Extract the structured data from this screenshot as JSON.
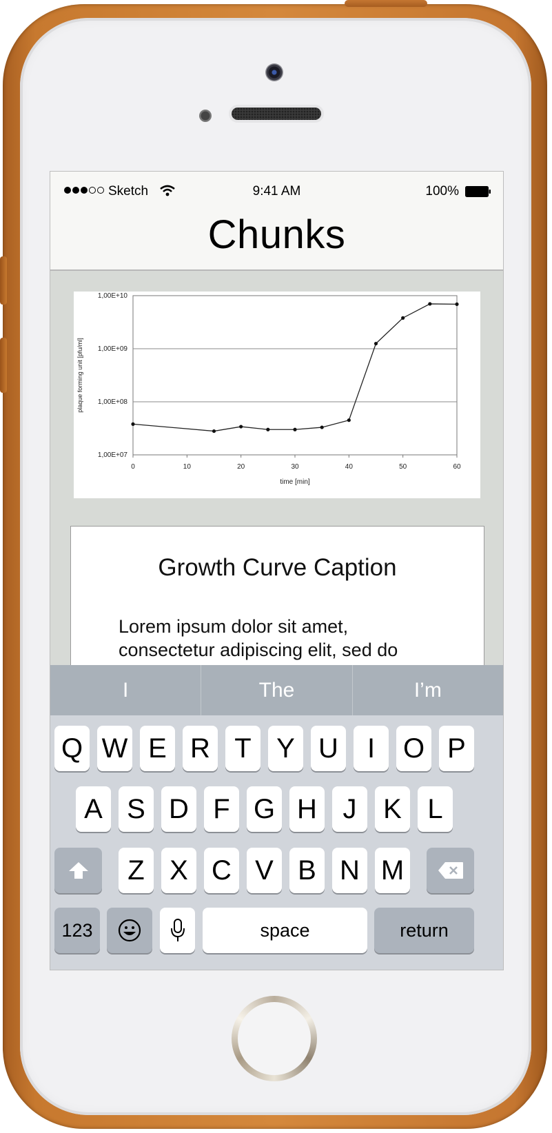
{
  "status_bar": {
    "carrier": "Sketch",
    "time": "9:41 AM",
    "battery": "100%"
  },
  "nav": {
    "title": "Chunks"
  },
  "chart_data": {
    "type": "line",
    "xlabel": "time [min]",
    "ylabel": "plaque forming unit [pfu/ml]",
    "yscale": "log",
    "ylim": [
      10000000,
      10000000000
    ],
    "xlim": [
      0,
      60
    ],
    "xticks": [
      "0",
      "10",
      "20",
      "30",
      "40",
      "50",
      "60"
    ],
    "yticks": [
      "1,00E+07",
      "1,00E+08",
      "1,00E+09",
      "1,00E+10"
    ],
    "grid": "horizontal",
    "x": [
      0,
      15,
      20,
      25,
      30,
      35,
      40,
      45,
      50,
      55,
      60
    ],
    "values": [
      38000000,
      28000000,
      34000000,
      30000000,
      30000000,
      33000000,
      45000000,
      1250000000,
      3800000000,
      7000000000,
      6900000000
    ]
  },
  "caption": {
    "title": "Growth Curve Caption",
    "body": "Lorem ipsum dolor sit amet, consectetur adipiscing elit, sed do eiusmod tempor incididunt ut labore et dolore magna aliqua."
  },
  "suggestions": [
    "I",
    "The",
    "I’m"
  ],
  "keyboard": {
    "row1": [
      "Q",
      "W",
      "E",
      "R",
      "T",
      "Y",
      "U",
      "I",
      "O",
      "P"
    ],
    "row2": [
      "A",
      "S",
      "D",
      "F",
      "G",
      "H",
      "J",
      "K",
      "L"
    ],
    "row3": [
      "Z",
      "X",
      "C",
      "V",
      "B",
      "N",
      "M"
    ],
    "numbers_label": "123",
    "space_label": "space",
    "return_label": "return",
    "icons": {
      "shift": "shift-icon",
      "delete": "delete-icon",
      "emoji": "emoji-icon",
      "mic": "microphone-icon"
    }
  }
}
